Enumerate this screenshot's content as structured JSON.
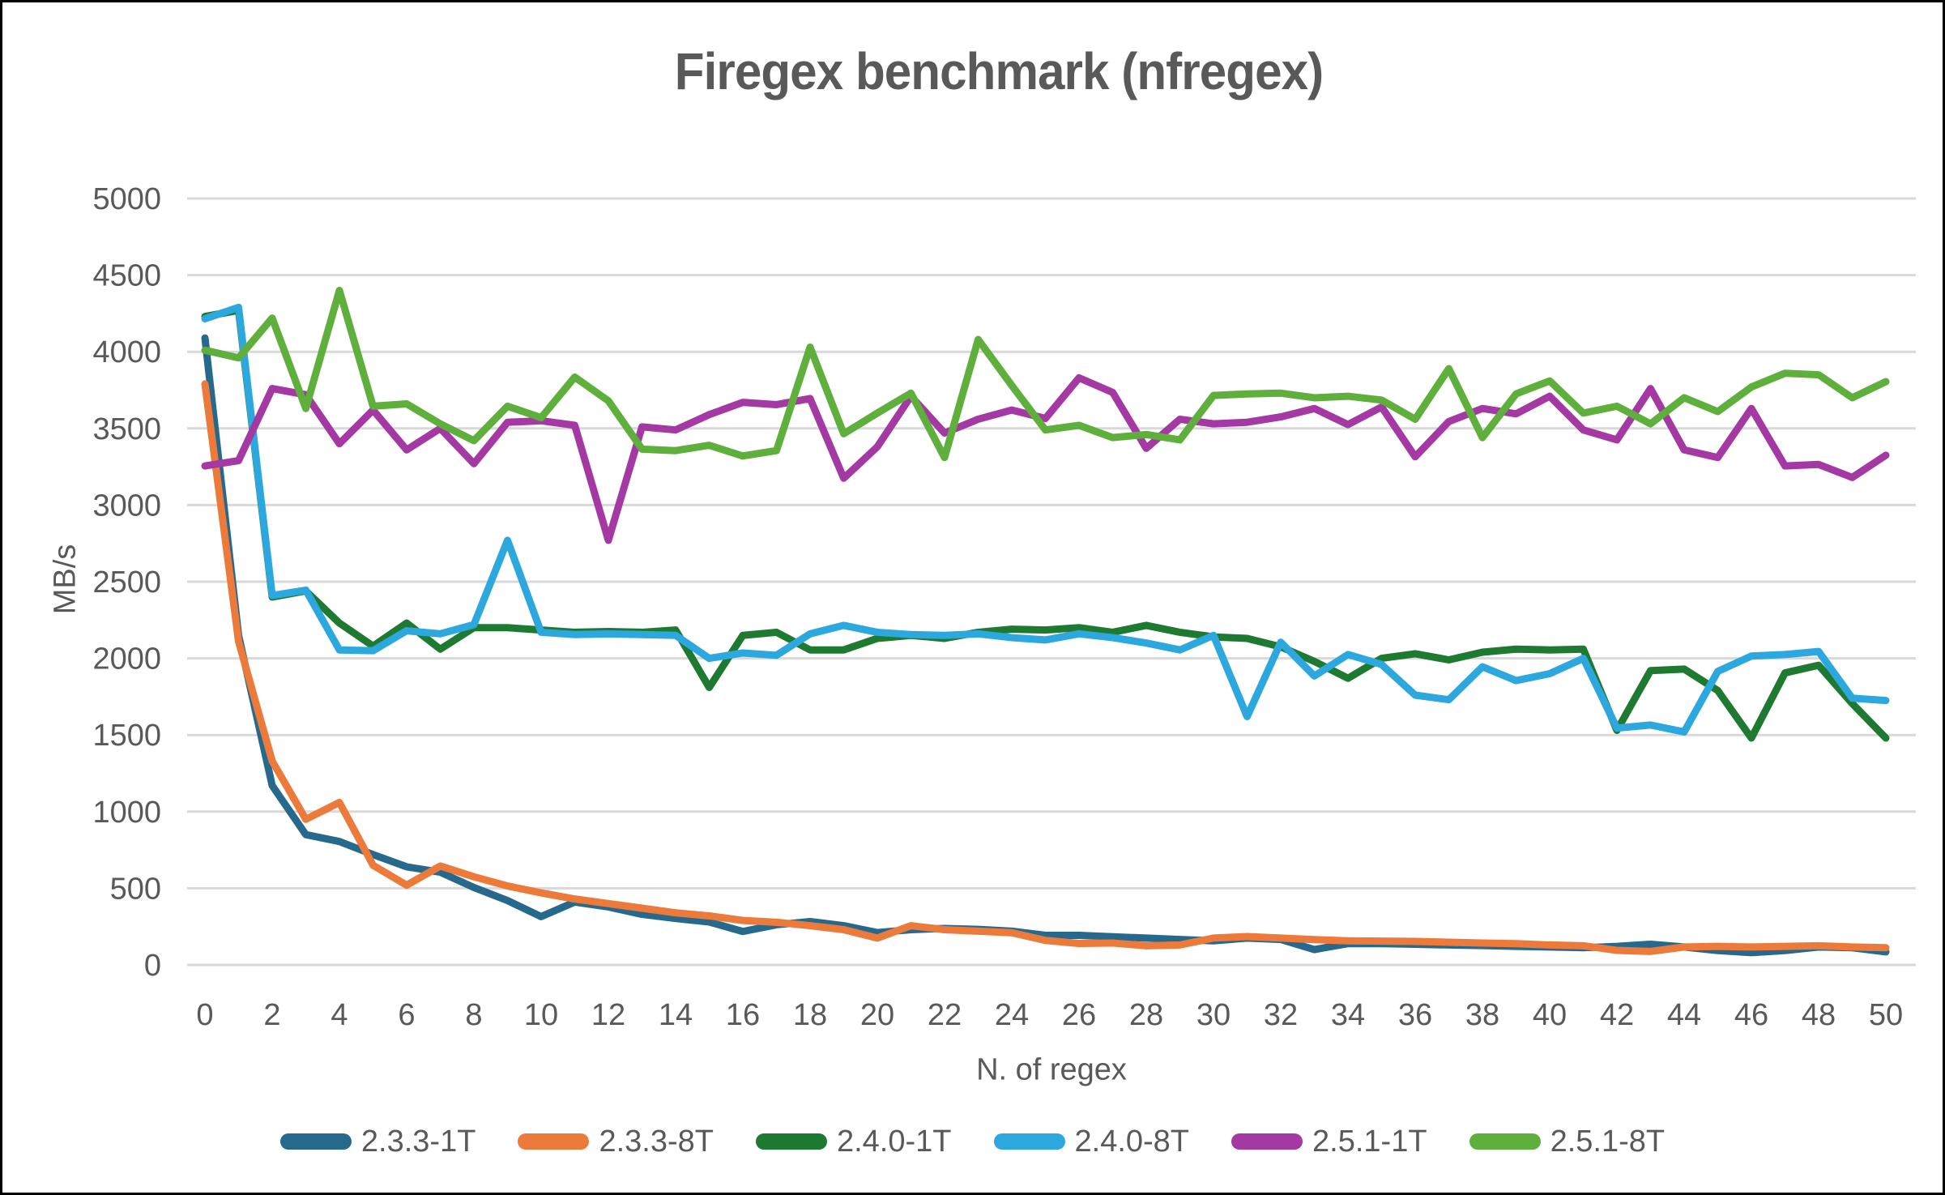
{
  "chart_data": {
    "type": "line",
    "title": "Firegex benchmark (nfregex)",
    "xlabel": "N. of regex",
    "ylabel": "MB/s",
    "xlim": [
      0,
      50
    ],
    "ylim": [
      0,
      5000
    ],
    "x_ticks": [
      0,
      2,
      4,
      6,
      8,
      10,
      12,
      14,
      16,
      18,
      20,
      22,
      24,
      26,
      28,
      30,
      32,
      34,
      36,
      38,
      40,
      42,
      44,
      46,
      48,
      50
    ],
    "y_ticks": [
      0,
      500,
      1000,
      1500,
      2000,
      2500,
      3000,
      3500,
      4000,
      4500,
      5000
    ],
    "grid": "horizontal",
    "gridline_color": "#D9D9D9",
    "tick_label_color": "#595959",
    "legend_position": "bottom",
    "x": [
      0,
      1,
      2,
      3,
      4,
      5,
      6,
      7,
      8,
      9,
      10,
      11,
      12,
      13,
      14,
      15,
      16,
      17,
      18,
      19,
      20,
      21,
      22,
      23,
      24,
      25,
      26,
      27,
      28,
      29,
      30,
      31,
      32,
      33,
      34,
      35,
      36,
      37,
      38,
      39,
      40,
      41,
      42,
      43,
      44,
      45,
      46,
      47,
      48,
      49,
      50
    ],
    "series": [
      {
        "name": "2.3.3-1T",
        "color": "#26698C",
        "values": [
          4090,
          2150,
          1170,
          850,
          805,
          720,
          640,
          605,
          505,
          420,
          315,
          410,
          378,
          330,
          303,
          280,
          218,
          262,
          283,
          256,
          211,
          230,
          238,
          232,
          220,
          193,
          193,
          184,
          175,
          166,
          157,
          175,
          166,
          100,
          139,
          139,
          135,
          130,
          126,
          121,
          117,
          112,
          121,
          135,
          117,
          94,
          80,
          94,
          117,
          112,
          85
        ]
      },
      {
        "name": "2.3.3-8T",
        "color": "#EC7A3B",
        "values": [
          3790,
          2110,
          1330,
          950,
          1060,
          650,
          520,
          645,
          575,
          515,
          470,
          430,
          400,
          370,
          340,
          320,
          290,
          278,
          256,
          230,
          175,
          256,
          230,
          220,
          210,
          160,
          140,
          143,
          125,
          130,
          175,
          185,
          175,
          165,
          157,
          155,
          153,
          148,
          143,
          139,
          130,
          125,
          95,
          88,
          117,
          121,
          117,
          121,
          125,
          117,
          112
        ]
      },
      {
        "name": "2.4.0-1T",
        "color": "#1E7A30",
        "values": [
          4230,
          4270,
          2400,
          2440,
          2230,
          2080,
          2230,
          2060,
          2200,
          2200,
          2185,
          2170,
          2175,
          2170,
          2185,
          1810,
          2150,
          2170,
          2055,
          2055,
          2130,
          2150,
          2130,
          2170,
          2190,
          2185,
          2200,
          2170,
          2215,
          2170,
          2140,
          2130,
          2075,
          1980,
          1870,
          2000,
          2030,
          1990,
          2040,
          2060,
          2055,
          2060,
          1530,
          1920,
          1930,
          1790,
          1480,
          1905,
          1955,
          1705,
          1480
        ]
      },
      {
        "name": "2.4.0-8T",
        "color": "#2CA8DF",
        "values": [
          4215,
          4290,
          2410,
          2445,
          2055,
          2050,
          2180,
          2160,
          2220,
          2770,
          2170,
          2155,
          2160,
          2155,
          2150,
          2000,
          2035,
          2020,
          2160,
          2215,
          2170,
          2155,
          2150,
          2160,
          2135,
          2120,
          2160,
          2135,
          2100,
          2055,
          2150,
          1620,
          2105,
          1885,
          2025,
          1960,
          1760,
          1730,
          1945,
          1855,
          1900,
          2000,
          1545,
          1565,
          1520,
          1915,
          2015,
          2025,
          2045,
          1740,
          1725
        ]
      },
      {
        "name": "2.5.1-1T",
        "color": "#A439A3",
        "values": [
          3255,
          3290,
          3760,
          3720,
          3400,
          3620,
          3360,
          3500,
          3270,
          3540,
          3550,
          3520,
          2770,
          3510,
          3490,
          3590,
          3670,
          3655,
          3695,
          3175,
          3380,
          3710,
          3470,
          3560,
          3620,
          3565,
          3830,
          3735,
          3370,
          3560,
          3530,
          3540,
          3575,
          3630,
          3525,
          3640,
          3315,
          3545,
          3630,
          3595,
          3710,
          3490,
          3425,
          3760,
          3360,
          3310,
          3630,
          3255,
          3265,
          3180,
          3325
        ]
      },
      {
        "name": "2.5.1-8T",
        "color": "#5FAF3C",
        "values": [
          4010,
          3960,
          4220,
          3630,
          4400,
          3645,
          3660,
          3530,
          3420,
          3645,
          3570,
          3835,
          3680,
          3365,
          3355,
          3390,
          3320,
          3355,
          4030,
          3465,
          3600,
          3730,
          3310,
          4080,
          3780,
          3490,
          3520,
          3440,
          3460,
          3425,
          3715,
          3725,
          3730,
          3700,
          3710,
          3685,
          3560,
          3890,
          3440,
          3725,
          3810,
          3600,
          3645,
          3530,
          3700,
          3610,
          3770,
          3860,
          3850,
          3700,
          3805
        ]
      }
    ]
  }
}
